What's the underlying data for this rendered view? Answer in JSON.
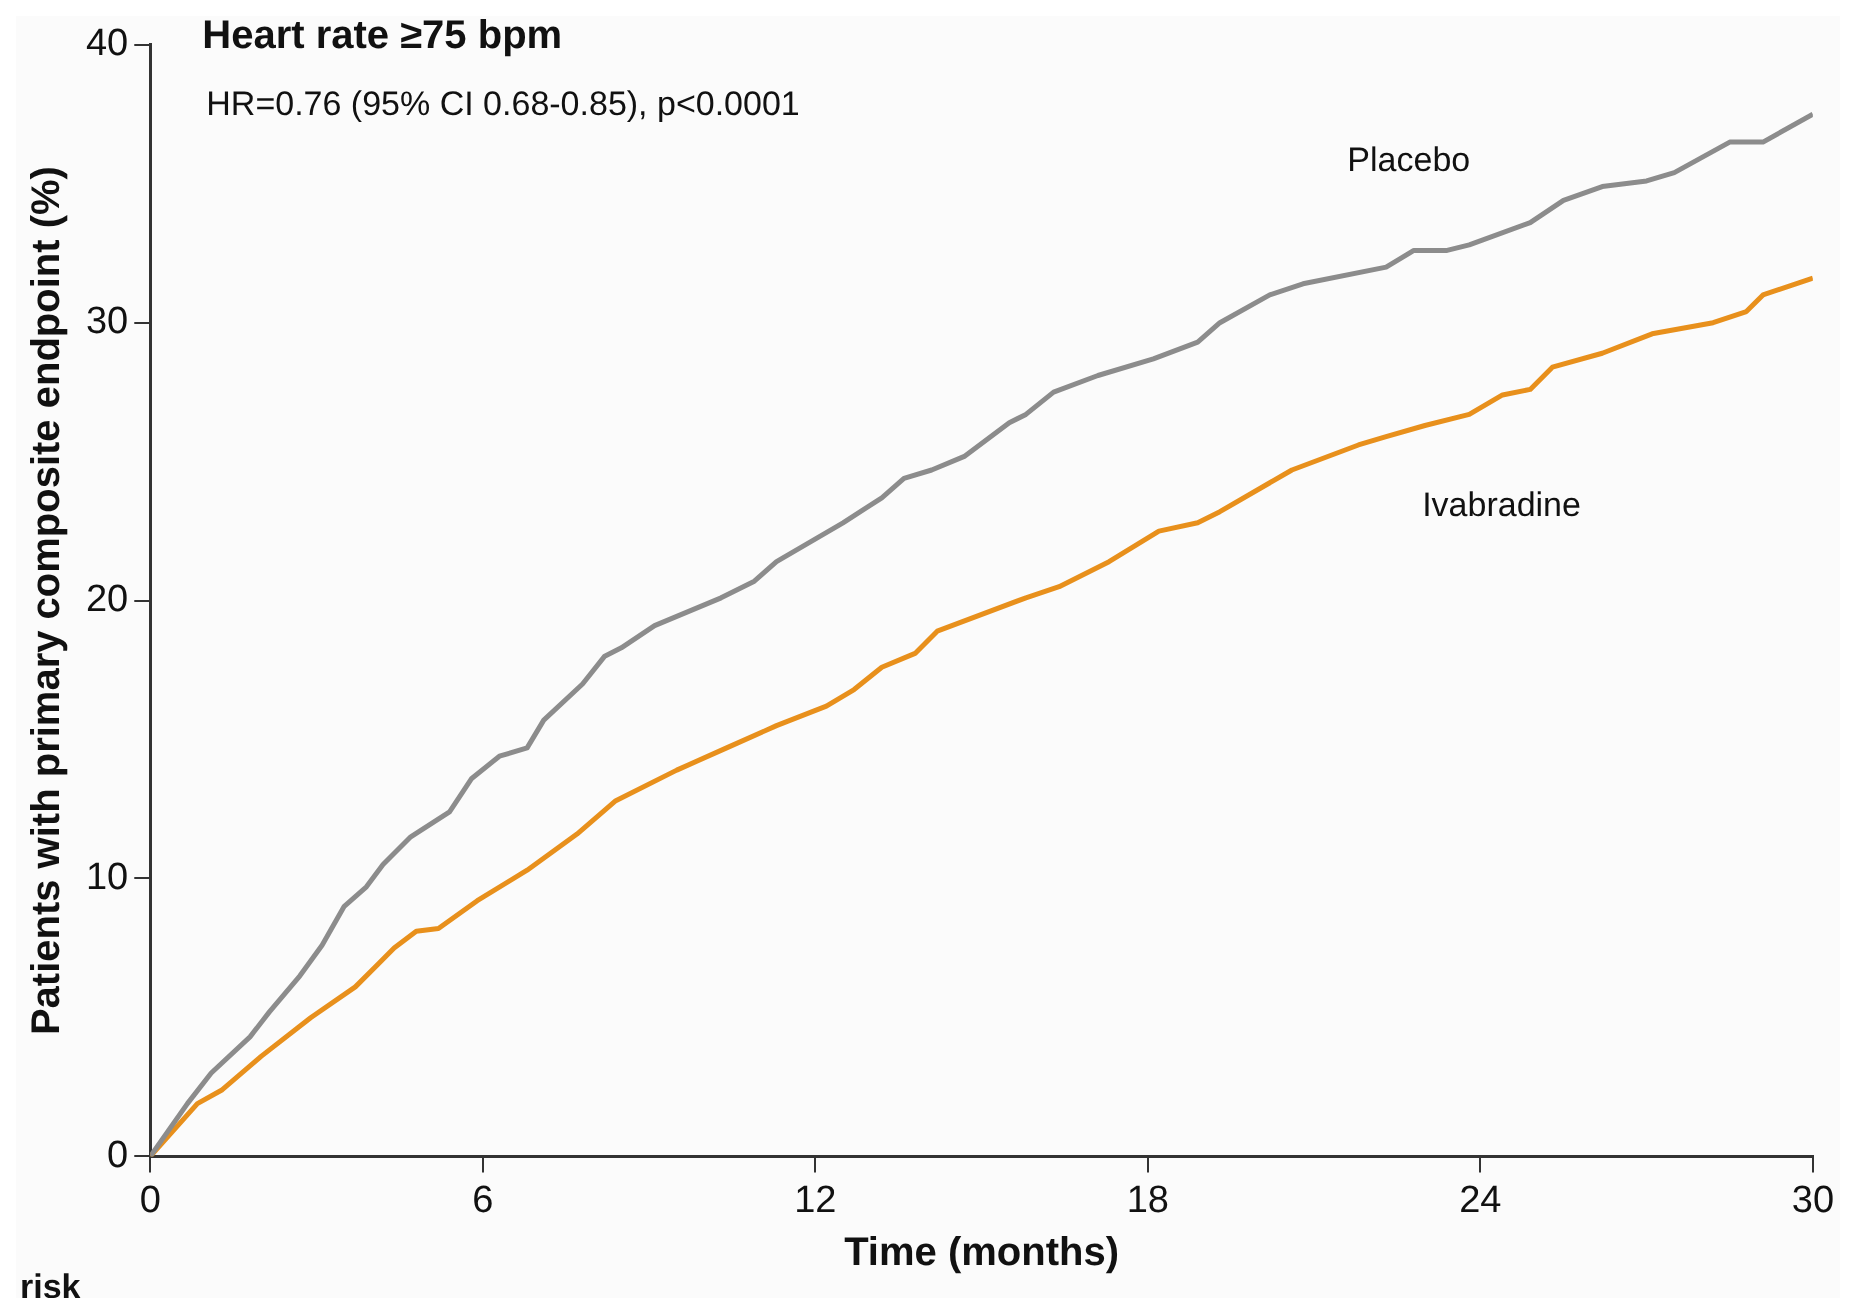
{
  "chart_data": {
    "type": "line",
    "title": "Heart rate ≥75 bpm",
    "subtitle": "HR=0.76 (95% CI 0.68-0.85), p<0.0001",
    "xlabel": "Time (months)",
    "ylabel": "Patients with primary composite endpoint (%)",
    "xlim": [
      0,
      30
    ],
    "xticks": [
      0,
      6,
      12,
      18,
      24,
      30
    ],
    "ylim": [
      0,
      40
    ],
    "yticks": [
      0,
      10,
      20,
      30,
      40
    ],
    "grid": false,
    "legend": false,
    "marker": "none",
    "line_style": "solid",
    "annotations": [
      "risk"
    ],
    "series": [
      {
        "name": "Placebo",
        "color": "#8c8c8c",
        "x": [
          0,
          0.67,
          1.1,
          1.8,
          2.15,
          2.7,
          3.1,
          3.5,
          3.9,
          4.2,
          4.7,
          5.4,
          5.8,
          6.3,
          6.8,
          7.1,
          7.8,
          8.2,
          8.5,
          9.1,
          10.3,
          10.9,
          11.3,
          12.5,
          13.2,
          13.6,
          14.1,
          14.7,
          15.5,
          15.8,
          16.3,
          17.1,
          18.1,
          18.9,
          19.3,
          20.2,
          20.8,
          22.3,
          22.8,
          23.4,
          23.8,
          24.9,
          25.5,
          26.2,
          27.0,
          27.5,
          28.5,
          29.1,
          30
        ],
        "values": [
          0,
          1.9,
          3.0,
          4.3,
          5.2,
          6.5,
          7.6,
          9.0,
          9.7,
          10.5,
          11.5,
          12.4,
          13.6,
          14.4,
          14.7,
          15.7,
          17.0,
          18.0,
          18.3,
          19.1,
          20.1,
          20.7,
          21.4,
          22.8,
          23.7,
          24.4,
          24.7,
          25.2,
          26.4,
          26.7,
          27.5,
          28.1,
          28.7,
          29.3,
          30.0,
          31.0,
          31.4,
          32.0,
          32.6,
          32.6,
          32.8,
          33.6,
          34.4,
          34.9,
          35.1,
          35.4,
          36.5,
          36.5,
          37.5
        ]
      },
      {
        "name": "Ivabradine",
        "color": "#e8901c",
        "x": [
          0,
          0.85,
          1.3,
          2.0,
          2.9,
          3.7,
          4.1,
          4.4,
          4.8,
          5.2,
          5.9,
          6.8,
          7.7,
          8.4,
          9.5,
          10.4,
          11.3,
          12.2,
          12.7,
          13.2,
          13.8,
          14.2,
          15.8,
          16.4,
          17.3,
          18.2,
          18.9,
          19.3,
          20.6,
          21.8,
          22.3,
          23.0,
          23.8,
          24.4,
          24.9,
          25.3,
          26.2,
          27.1,
          28.2,
          28.8,
          29.1,
          30
        ],
        "values": [
          0,
          1.9,
          2.4,
          3.6,
          5.0,
          6.1,
          6.9,
          7.5,
          8.1,
          8.2,
          9.2,
          10.3,
          11.6,
          12.8,
          13.9,
          14.7,
          15.5,
          16.2,
          16.8,
          17.6,
          18.1,
          18.9,
          20.1,
          20.5,
          21.4,
          22.5,
          22.8,
          23.2,
          24.7,
          25.6,
          25.9,
          26.3,
          26.7,
          27.4,
          27.6,
          28.4,
          28.9,
          29.6,
          30.0,
          30.4,
          31.0,
          31.6
        ]
      }
    ]
  }
}
